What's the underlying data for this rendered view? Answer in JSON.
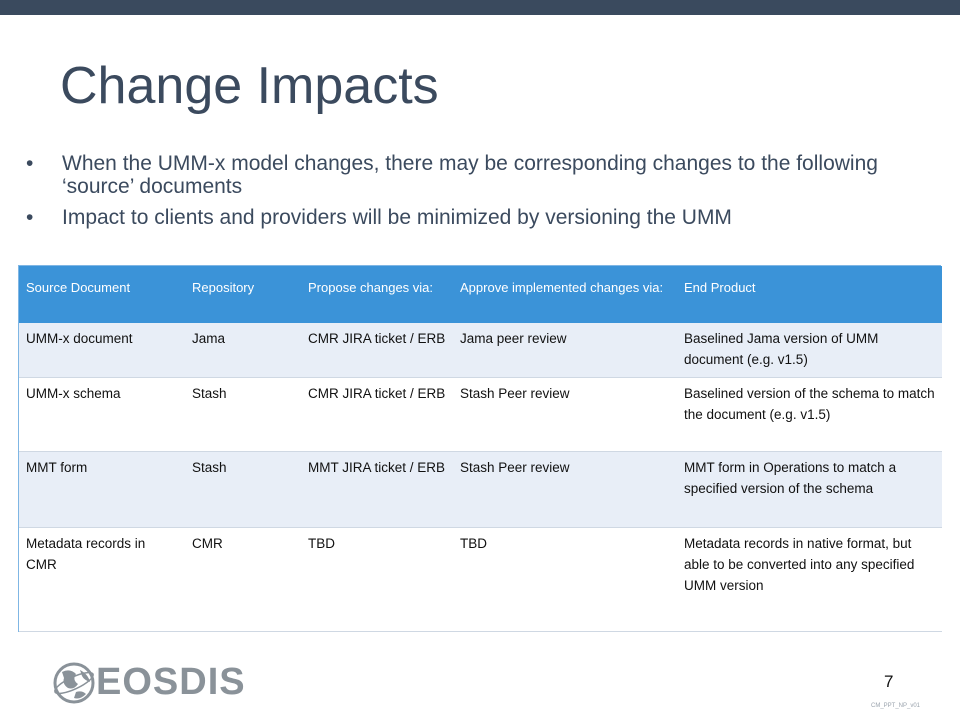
{
  "slide": {
    "title": "Change Impacts",
    "bullets": [
      "When the UMM-x model changes, there may be corresponding changes to the following ‘source’ documents",
      "Impact to clients and providers will be minimized by versioning the UMM"
    ],
    "bullet_glyph": "•",
    "table": {
      "headers": [
        "Source Document",
        "Repository",
        "Propose changes via:",
        "Approve implemented changes via:",
        "End Product"
      ],
      "rows": [
        [
          "UMM-x document",
          "Jama",
          "CMR JIRA ticket / ERB",
          "Jama peer review",
          "Baselined Jama version of UMM document (e.g. v1.5)"
        ],
        [
          "UMM-x schema",
          "Stash",
          "CMR JIRA ticket / ERB",
          "Stash Peer review",
          "Baselined version of the schema to match the document (e.g. v1.5)"
        ],
        [
          "MMT form",
          "Stash",
          "MMT JIRA ticket / ERB",
          "Stash Peer review",
          "MMT form in Operations to match a specified version of the schema"
        ],
        [
          "Metadata records in CMR",
          "CMR",
          "TBD",
          "TBD",
          "Metadata records in native format, but able to be converted into any specified UMM version"
        ]
      ]
    },
    "logo_text": "EOSDIS",
    "page_number": "7",
    "footer_code": "CM_PPT_NP_v01",
    "colors": {
      "topbar": "#3a4a5e",
      "title": "#3b4a5e",
      "header_bg": "#3b93d8",
      "row_alt": "#e8eef7",
      "logo": "#8a9299"
    }
  }
}
